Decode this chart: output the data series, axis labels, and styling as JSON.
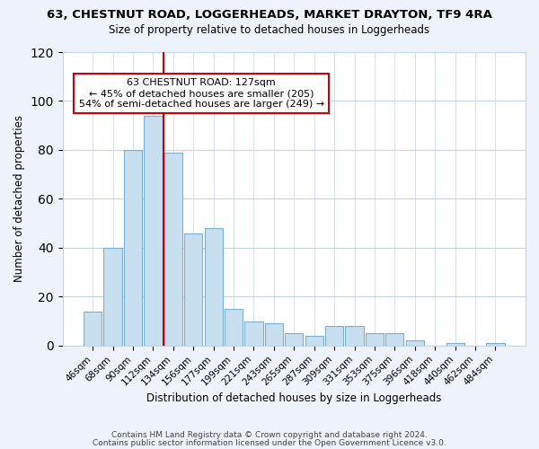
{
  "title": "63, CHESTNUT ROAD, LOGGERHEADS, MARKET DRAYTON, TF9 4RA",
  "subtitle": "Size of property relative to detached houses in Loggerheads",
  "xlabel": "Distribution of detached houses by size in Loggerheads",
  "ylabel": "Number of detached properties",
  "bar_labels": [
    "46sqm",
    "68sqm",
    "90sqm",
    "112sqm",
    "134sqm",
    "156sqm",
    "177sqm",
    "199sqm",
    "221sqm",
    "243sqm",
    "265sqm",
    "287sqm",
    "309sqm",
    "331sqm",
    "353sqm",
    "375sqm",
    "396sqm",
    "418sqm",
    "440sqm",
    "462sqm",
    "484sqm"
  ],
  "bar_values": [
    14,
    40,
    80,
    94,
    79,
    46,
    48,
    15,
    10,
    9,
    5,
    4,
    8,
    8,
    5,
    5,
    2,
    0,
    1,
    0,
    1
  ],
  "bar_color": "#c8dff0",
  "bar_edge_color": "#7ab0d4",
  "vline_color": "#cc0000",
  "annotation_title": "63 CHESTNUT ROAD: 127sqm",
  "annotation_line1": "← 45% of detached houses are smaller (205)",
  "annotation_line2": "54% of semi-detached houses are larger (249) →",
  "annotation_box_color": "#ffffff",
  "annotation_box_edge_color": "#cc0000",
  "ylim": [
    0,
    120
  ],
  "yticks": [
    0,
    20,
    40,
    60,
    80,
    100,
    120
  ],
  "footer_line1": "Contains HM Land Registry data © Crown copyright and database right 2024.",
  "footer_line2": "Contains public sector information licensed under the Open Government Licence v3.0.",
  "background_color": "#eef2fb",
  "plot_bg_color": "#ffffff",
  "grid_color": "#c8d4e8"
}
